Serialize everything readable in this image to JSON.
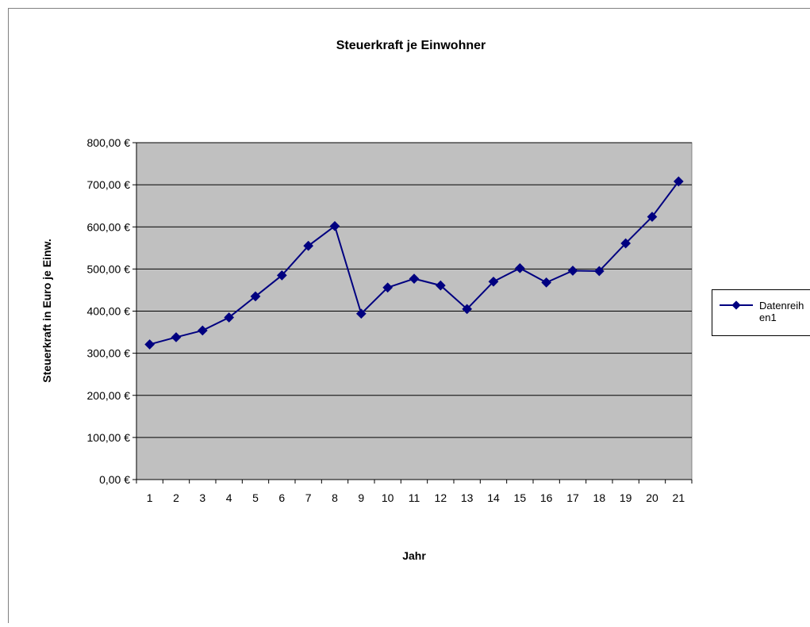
{
  "chart_data": {
    "type": "line",
    "title": "Steuerkraft je Einwohner",
    "xlabel": "Jahr",
    "ylabel": "Steuerkraft in Euro je Einw.",
    "categories": [
      "1",
      "2",
      "3",
      "4",
      "5",
      "6",
      "7",
      "8",
      "9",
      "10",
      "11",
      "12",
      "13",
      "14",
      "15",
      "16",
      "17",
      "18",
      "19",
      "20",
      "21"
    ],
    "series": [
      {
        "name": "Datenreihen1",
        "values": [
          321,
          338,
          354,
          385,
          435,
          485,
          555,
          602,
          394,
          456,
          477,
          461,
          405,
          470,
          502,
          468,
          496,
          495,
          561,
          624,
          708
        ]
      }
    ],
    "ylim": [
      0,
      800
    ],
    "ytick_labels": [
      "0,00 €",
      "100,00 €",
      "200,00 €",
      "300,00 €",
      "400,00 €",
      "500,00 €",
      "600,00 €",
      "700,00 €",
      "800,00 €"
    ],
    "legend": {
      "placement": "right",
      "label_lines": [
        "Datenreih",
        "en1"
      ]
    },
    "grid": true,
    "colors": {
      "plot_background": "#c0c0c0",
      "series_line": "#000080",
      "gridline": "#000000",
      "frame": "#808080"
    }
  }
}
